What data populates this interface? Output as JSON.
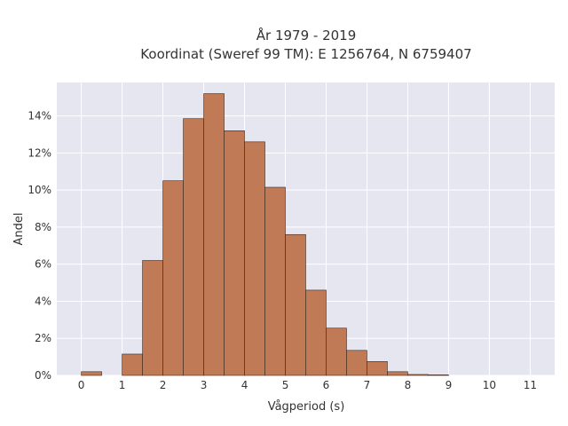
{
  "chart_data": {
    "type": "bar",
    "title": "År 1979 - 2019",
    "subtitle": "Koordinat (Sweref 99 TM): E 1256764, N 6759407",
    "xlabel": "Vågperiod (s)",
    "ylabel": "Andel",
    "bin_width": 0.5,
    "bin_starts": [
      0,
      1,
      1.5,
      2,
      2.5,
      3,
      3.5,
      4,
      4.5,
      5,
      5.5,
      6,
      6.5,
      7,
      7.5,
      8,
      8.5
    ],
    "values": [
      0.2,
      1.15,
      6.2,
      10.5,
      13.85,
      15.2,
      13.2,
      12.6,
      10.15,
      7.6,
      4.6,
      2.55,
      1.35,
      0.75,
      0.2,
      0.05,
      0.03
    ],
    "xlim": [
      -0.6,
      11.6
    ],
    "ylim": [
      0,
      15.8
    ],
    "x_ticks": [
      0,
      1,
      2,
      3,
      4,
      5,
      6,
      7,
      8,
      9,
      10,
      11
    ],
    "y_ticks": [
      0,
      2,
      4,
      6,
      8,
      10,
      12,
      14
    ],
    "y_tick_labels": [
      "0%",
      "2%",
      "4%",
      "6%",
      "8%",
      "10%",
      "12%",
      "14%"
    ],
    "grid": true,
    "colors": {
      "bar_fill": "#c07a55",
      "bar_stroke": "#3d2a20",
      "plot_bg": "#e6e6f0",
      "grid": "#ffffff"
    }
  }
}
